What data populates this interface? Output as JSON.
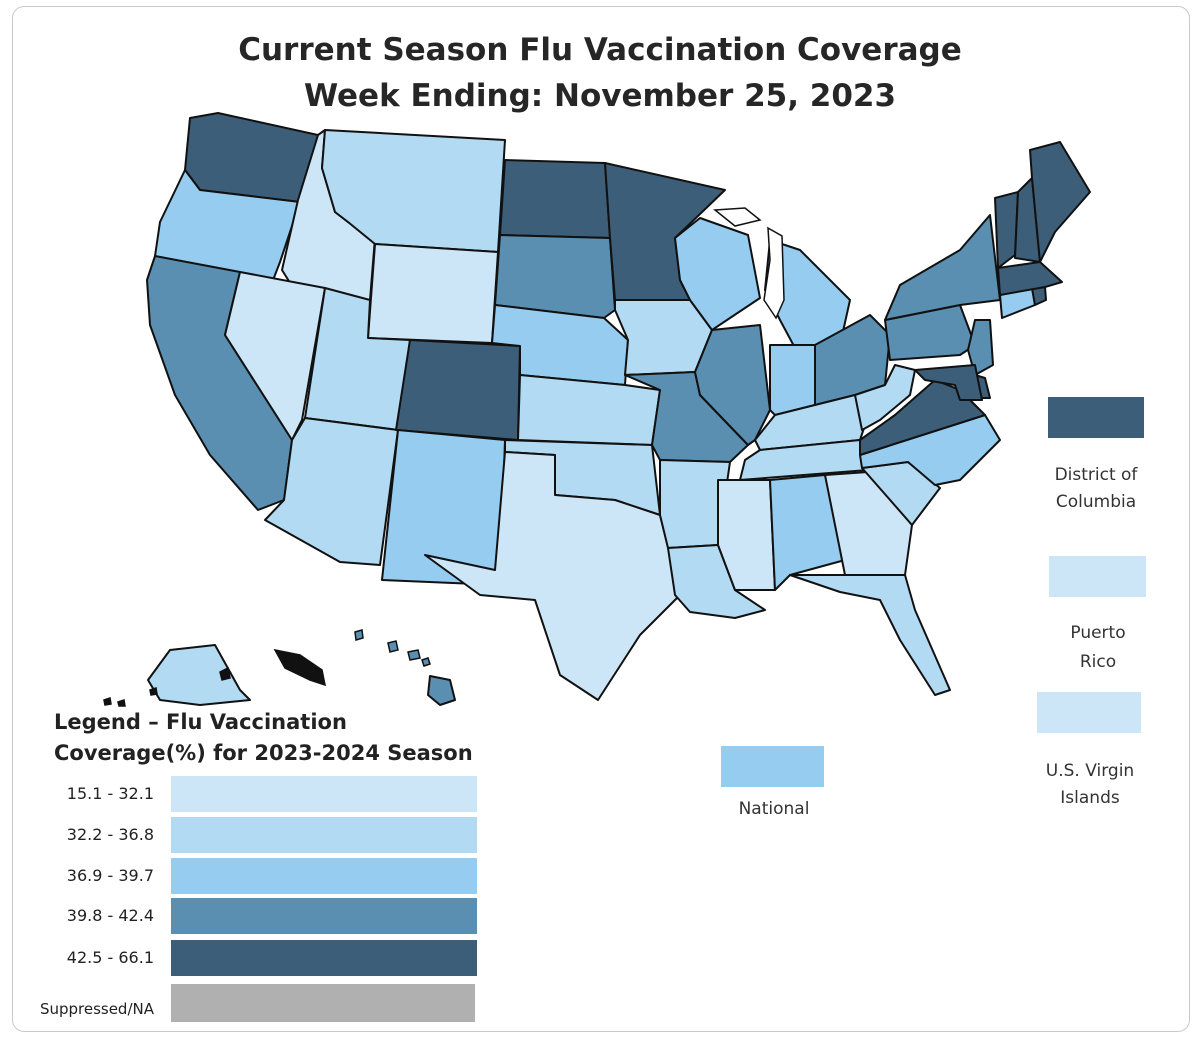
{
  "title_line1": "Current Season Flu Vaccination Coverage",
  "title_line2": "Week Ending: November 25, 2023",
  "legend": {
    "title_line1": "Legend – Flu Vaccination",
    "title_line2": "Coverage(%) for 2023-2024 Season",
    "bins": [
      {
        "label": "15.1 - 32.1",
        "color": "#cde6f7"
      },
      {
        "label": "32.2 - 36.8",
        "color": "#b3daf3"
      },
      {
        "label": "36.9 - 39.7",
        "color": "#95ccef"
      },
      {
        "label": "39.8 - 42.4",
        "color": "#5a8fb2"
      },
      {
        "label": "42.5 - 66.1",
        "color": "#3d5e78"
      },
      {
        "label": "Suppressed/NA",
        "color": "#b0b0b0"
      }
    ]
  },
  "territories": {
    "dc": {
      "line1": "District of",
      "line2": "Columbia",
      "bin": 4
    },
    "pr": {
      "line1": "Puerto",
      "line2": "Rico",
      "bin": 0
    },
    "vi": {
      "line1": "U.S. Virgin",
      "line2": "Islands",
      "bin": 0
    },
    "national": {
      "label": "National",
      "bin": 2
    }
  },
  "states": {
    "WA": 4,
    "OR": 2,
    "CA": 3,
    "ID": 0,
    "NV": 0,
    "MT": 1,
    "WY": 0,
    "UT": 1,
    "AZ": 1,
    "CO": 4,
    "NM": 2,
    "ND": 4,
    "SD": 3,
    "NE": 2,
    "KS": 1,
    "OK": 1,
    "TX": 0,
    "MN": 4,
    "IA": 1,
    "MO": 3,
    "AR": 1,
    "LA": 1,
    "WI": 2,
    "IL": 3,
    "MI": 2,
    "IN": 2,
    "OH": 3,
    "KY": 1,
    "TN": 1,
    "MS": 0,
    "AL": 2,
    "GA": 0,
    "FL": 1,
    "SC": 1,
    "NC": 2,
    "VA": 4,
    "WV": 1,
    "PA": 3,
    "NY": 3,
    "NJ": 3,
    "DE": 4,
    "MD": 4,
    "CT": 2,
    "RI": 4,
    "MA": 4,
    "VT": 4,
    "NH": 4,
    "ME": 4,
    "AK": 1,
    "HI": 3
  }
}
